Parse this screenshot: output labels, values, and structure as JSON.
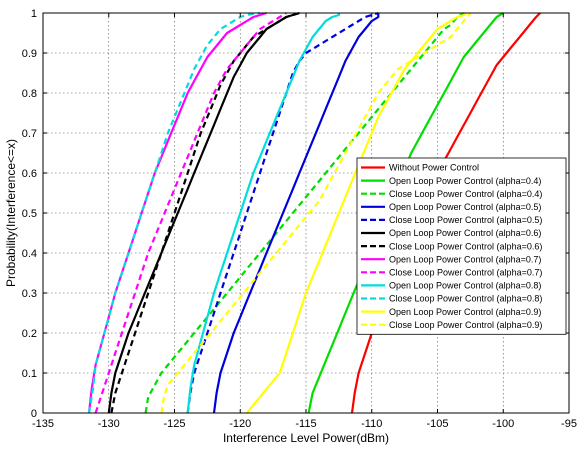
{
  "chart_data": {
    "type": "line",
    "title": "",
    "xlabel": "Interference Level Power(dBm)",
    "ylabel": "Probability(Interference<=x)",
    "xlim": [
      -135,
      -95
    ],
    "ylim": [
      0,
      1
    ],
    "xticks": [
      "-135",
      "-130",
      "-125",
      "-120",
      "-115",
      "-110",
      "-105",
      "-100",
      "-95"
    ],
    "yticks": [
      "0",
      "0.1",
      "0.2",
      "0.3",
      "0.4",
      "0.5",
      "0.6",
      "0.7",
      "0.8",
      "0.9",
      "1"
    ],
    "grid": true,
    "legend_position": "right",
    "series": [
      {
        "name": "Without Power Control",
        "color": "#ff0000",
        "dash": "solid",
        "x": [
          -111.5,
          -111.3,
          -111,
          -110.5,
          -110,
          -109.5,
          -109,
          -108.5,
          -108,
          -107.5,
          -107,
          -106.5,
          -106,
          -105.5,
          -105,
          -104.5,
          -104,
          -103.5,
          -103,
          -102.5,
          -102,
          -101.5,
          -101,
          -100.5,
          -100,
          -99.5,
          -99,
          -98.5,
          -98,
          -97.5,
          -97.2
        ],
        "y": [
          0,
          0.05,
          0.1,
          0.15,
          0.2,
          0.24,
          0.28,
          0.32,
          0.36,
          0.4,
          0.44,
          0.48,
          0.52,
          0.56,
          0.6,
          0.63,
          0.66,
          0.69,
          0.72,
          0.75,
          0.78,
          0.81,
          0.84,
          0.87,
          0.89,
          0.91,
          0.93,
          0.95,
          0.97,
          0.99,
          1
        ]
      },
      {
        "name": "Open Loop Power Control (alpha=0.4)",
        "color": "#00dd00",
        "dash": "solid",
        "x": [
          -114.8,
          -114.5,
          -114,
          -113.5,
          -113,
          -112.5,
          -112,
          -111.5,
          -111,
          -110.5,
          -110,
          -109.5,
          -109,
          -108.5,
          -108,
          -107.5,
          -107,
          -106.5,
          -106,
          -105.5,
          -105,
          -104.5,
          -104,
          -103.5,
          -103,
          -102.5,
          -102,
          -101.5,
          -101,
          -100.5,
          -100
        ],
        "y": [
          0,
          0.05,
          0.09,
          0.13,
          0.17,
          0.21,
          0.25,
          0.29,
          0.33,
          0.37,
          0.41,
          0.45,
          0.49,
          0.53,
          0.57,
          0.61,
          0.65,
          0.68,
          0.71,
          0.74,
          0.77,
          0.8,
          0.83,
          0.86,
          0.89,
          0.91,
          0.93,
          0.95,
          0.97,
          0.99,
          1
        ]
      },
      {
        "name": "Close Loop Power Control (alpha=0.4)",
        "color": "#00dd00",
        "dash": "dashed",
        "x": [
          -127.2,
          -127,
          -126.5,
          -126,
          -125.5,
          -125,
          -124.5,
          -124,
          -123.5,
          -123,
          -122.5,
          -122,
          -121.5,
          -121,
          -120.5,
          -120,
          -119.5,
          -119,
          -118.5,
          -118,
          -117.5,
          -117,
          -116.5,
          -116,
          -115.5,
          -115,
          -114.5,
          -114,
          -113.5,
          -113,
          -112.5,
          -112,
          -111.5,
          -111,
          -110.5,
          -110,
          -109.5,
          -109,
          -108.5,
          -108,
          -107.5,
          -107,
          -106.5,
          -106,
          -105.5,
          -105,
          -104.5,
          -104,
          -103.5,
          -103
        ],
        "y": [
          0,
          0.04,
          0.07,
          0.1,
          0.12,
          0.14,
          0.16,
          0.18,
          0.2,
          0.22,
          0.24,
          0.26,
          0.28,
          0.3,
          0.32,
          0.34,
          0.36,
          0.38,
          0.4,
          0.42,
          0.44,
          0.46,
          0.48,
          0.5,
          0.52,
          0.54,
          0.56,
          0.58,
          0.6,
          0.62,
          0.64,
          0.66,
          0.68,
          0.7,
          0.72,
          0.74,
          0.76,
          0.78,
          0.8,
          0.82,
          0.84,
          0.86,
          0.88,
          0.9,
          0.92,
          0.94,
          0.96,
          0.97,
          0.99,
          1
        ]
      },
      {
        "name": "Open Loop Power Control (alpha=0.5)",
        "color": "#0000dd",
        "dash": "solid",
        "x": [
          -122,
          -121.8,
          -121.5,
          -121,
          -120.5,
          -120,
          -119.5,
          -119,
          -118.5,
          -118,
          -117.5,
          -117,
          -116.5,
          -116,
          -115.5,
          -115,
          -114.5,
          -114,
          -113.5,
          -113,
          -112.5,
          -112,
          -111.5,
          -111,
          -110.5,
          -110,
          -109.5,
          -109.5
        ],
        "y": [
          0,
          0.05,
          0.1,
          0.15,
          0.2,
          0.24,
          0.28,
          0.32,
          0.36,
          0.4,
          0.44,
          0.48,
          0.52,
          0.56,
          0.6,
          0.64,
          0.68,
          0.72,
          0.76,
          0.8,
          0.84,
          0.88,
          0.91,
          0.94,
          0.96,
          0.98,
          0.99,
          1
        ]
      },
      {
        "name": "Close Loop Power Control (alpha=0.5)",
        "color": "#0000dd",
        "dash": "dashed",
        "x": [
          -124,
          -123.8,
          -123.5,
          -123,
          -122.5,
          -122,
          -121.5,
          -121,
          -120.5,
          -120,
          -119.5,
          -119,
          -118.5,
          -118,
          -117.5,
          -117,
          -116.5,
          -116,
          -115.5,
          -115,
          -114.5,
          -114,
          -113.5,
          -113,
          -112.5,
          -112,
          -111.5,
          -111,
          -110.5,
          -110,
          -109.5
        ],
        "y": [
          0,
          0.05,
          0.1,
          0.15,
          0.2,
          0.25,
          0.3,
          0.35,
          0.4,
          0.45,
          0.5,
          0.55,
          0.6,
          0.65,
          0.7,
          0.75,
          0.8,
          0.85,
          0.88,
          0.9,
          0.91,
          0.92,
          0.93,
          0.94,
          0.95,
          0.96,
          0.97,
          0.98,
          0.99,
          0.995,
          1
        ]
      },
      {
        "name": "Open Loop Power Control (alpha=0.6)",
        "color": "#000000",
        "dash": "solid",
        "x": [
          -130,
          -129.8,
          -129.5,
          -129,
          -128.5,
          -128,
          -127.5,
          -127,
          -126.5,
          -126,
          -125.5,
          -125,
          -124.5,
          -124,
          -123.5,
          -123,
          -122.5,
          -122,
          -121.5,
          -121,
          -120.5,
          -120,
          -119.5,
          -119,
          -118.5,
          -118,
          -117.5,
          -117,
          -116.5,
          -116,
          -115.5
        ],
        "y": [
          0,
          0.05,
          0.1,
          0.15,
          0.2,
          0.24,
          0.28,
          0.32,
          0.36,
          0.4,
          0.44,
          0.48,
          0.52,
          0.56,
          0.6,
          0.64,
          0.68,
          0.72,
          0.76,
          0.8,
          0.84,
          0.87,
          0.9,
          0.92,
          0.94,
          0.96,
          0.97,
          0.98,
          0.99,
          0.995,
          1
        ]
      },
      {
        "name": "Close Loop Power Control (alpha=0.6)",
        "color": "#000000",
        "dash": "dashed",
        "x": [
          -129.8,
          -129.5,
          -129,
          -128.5,
          -128,
          -127.5,
          -127,
          -126.5,
          -126,
          -125.5,
          -125,
          -124.5,
          -124,
          -123.5,
          -123,
          -122.5,
          -122,
          -121.5,
          -121,
          -120.5,
          -120,
          -119.5,
          -119,
          -118.5,
          -118,
          -117.5,
          -117,
          -116.5,
          -116,
          -115.5
        ],
        "y": [
          0,
          0.05,
          0.1,
          0.15,
          0.2,
          0.25,
          0.3,
          0.35,
          0.4,
          0.45,
          0.5,
          0.55,
          0.6,
          0.65,
          0.7,
          0.74,
          0.78,
          0.82,
          0.85,
          0.88,
          0.9,
          0.92,
          0.94,
          0.95,
          0.96,
          0.97,
          0.98,
          0.99,
          0.995,
          1
        ]
      },
      {
        "name": "Open Loop Power Control (alpha=0.7)",
        "color": "#ff00ff",
        "dash": "solid",
        "x": [
          -131.5,
          -131.3,
          -131,
          -130.5,
          -130,
          -129.5,
          -129,
          -128.5,
          -128,
          -127.5,
          -127,
          -126.5,
          -126,
          -125.5,
          -125,
          -124.5,
          -124,
          -123.5,
          -123,
          -122.5,
          -122,
          -121.5,
          -121,
          -120.5,
          -120,
          -119.5,
          -119,
          -118.5,
          -118
        ],
        "y": [
          0,
          0.06,
          0.12,
          0.18,
          0.24,
          0.3,
          0.35,
          0.4,
          0.45,
          0.5,
          0.55,
          0.6,
          0.64,
          0.68,
          0.72,
          0.76,
          0.8,
          0.83,
          0.86,
          0.89,
          0.91,
          0.93,
          0.95,
          0.96,
          0.97,
          0.98,
          0.99,
          0.995,
          1
        ]
      },
      {
        "name": "Close Loop Power Control (alpha=0.7)",
        "color": "#ff00ff",
        "dash": "dashed",
        "x": [
          -131,
          -130.5,
          -130,
          -129.5,
          -129,
          -128.5,
          -128,
          -127.5,
          -127,
          -126.5,
          -126,
          -125.5,
          -125,
          -124.5,
          -124,
          -123.5,
          -123,
          -122.5,
          -122,
          -121.5,
          -121,
          -120.5,
          -120,
          -119.5,
          -119,
          -118.5,
          -118,
          -117.5,
          -117,
          -116.5
        ],
        "y": [
          0,
          0.05,
          0.1,
          0.15,
          0.2,
          0.25,
          0.3,
          0.35,
          0.4,
          0.44,
          0.48,
          0.52,
          0.56,
          0.6,
          0.64,
          0.68,
          0.72,
          0.76,
          0.8,
          0.83,
          0.86,
          0.88,
          0.9,
          0.92,
          0.94,
          0.96,
          0.97,
          0.98,
          0.99,
          1
        ]
      },
      {
        "name": "Open Loop Power Control (alpha=0.8)",
        "color": "#00dddd",
        "dash": "solid",
        "x": [
          -124,
          -123.8,
          -123.5,
          -123,
          -122.5,
          -122,
          -121.5,
          -121,
          -120.5,
          -120,
          -119.5,
          -119,
          -118.5,
          -118,
          -117.5,
          -117,
          -116.5,
          -116,
          -115.5,
          -115,
          -114.5,
          -114,
          -113.5,
          -113,
          -112.5,
          -112.5
        ],
        "y": [
          0,
          0.06,
          0.12,
          0.18,
          0.24,
          0.3,
          0.35,
          0.4,
          0.45,
          0.5,
          0.55,
          0.6,
          0.64,
          0.68,
          0.72,
          0.76,
          0.8,
          0.84,
          0.88,
          0.91,
          0.94,
          0.96,
          0.98,
          0.99,
          0.995,
          1
        ]
      },
      {
        "name": "Close Loop Power Control (alpha=0.8)",
        "color": "#00dddd",
        "dash": "dashed",
        "x": [
          -131.5,
          -131.2,
          -131,
          -130.5,
          -130,
          -129.5,
          -129,
          -128.5,
          -128,
          -127.5,
          -127,
          -126.5,
          -126,
          -125.5,
          -125,
          -124.5,
          -124,
          -123.5,
          -123,
          -122.5,
          -122,
          -121.5,
          -121,
          -120.5,
          -120,
          -119.5,
          -119,
          -118.5
        ],
        "y": [
          0,
          0.06,
          0.12,
          0.18,
          0.24,
          0.3,
          0.35,
          0.4,
          0.45,
          0.5,
          0.55,
          0.6,
          0.65,
          0.7,
          0.74,
          0.78,
          0.82,
          0.86,
          0.89,
          0.92,
          0.94,
          0.96,
          0.97,
          0.98,
          0.99,
          0.995,
          0.998,
          1
        ]
      },
      {
        "name": "Open Loop Power Control (alpha=0.9)",
        "color": "#ffff00",
        "dash": "solid",
        "x": [
          -119.5,
          -119,
          -118.5,
          -118,
          -117.5,
          -117,
          -116.5,
          -116,
          -115.5,
          -115,
          -114.5,
          -114,
          -113.5,
          -113,
          -112.5,
          -112,
          -111.5,
          -111,
          -110.5,
          -110,
          -109.5,
          -109,
          -108.5,
          -108,
          -107.5,
          -107,
          -106.5,
          -106,
          -105.5,
          -105,
          -104.5,
          -104,
          -103.5,
          -103,
          -102.8
        ],
        "y": [
          0,
          0.02,
          0.04,
          0.06,
          0.08,
          0.1,
          0.15,
          0.2,
          0.25,
          0.3,
          0.34,
          0.38,
          0.42,
          0.46,
          0.5,
          0.54,
          0.58,
          0.62,
          0.66,
          0.7,
          0.74,
          0.77,
          0.8,
          0.83,
          0.86,
          0.88,
          0.9,
          0.92,
          0.94,
          0.96,
          0.97,
          0.98,
          0.99,
          0.995,
          1
        ]
      },
      {
        "name": "Close Loop Power Control (alpha=0.9)",
        "color": "#ffff00",
        "dash": "dashed",
        "x": [
          -126,
          -125.8,
          -125.5,
          -125,
          -124.5,
          -124,
          -123.5,
          -123,
          -122.5,
          -122,
          -121.5,
          -121,
          -120.5,
          -120,
          -119.5,
          -119,
          -118.5,
          -118,
          -117.5,
          -117,
          -116.5,
          -116,
          -115.5,
          -115,
          -114.5,
          -114,
          -113.5,
          -113,
          -112.5,
          -112,
          -111.5,
          -111,
          -110.5,
          -110,
          -109.5,
          -109,
          -108.5,
          -108,
          -107.5,
          -107,
          -106.5,
          -106,
          -105.5,
          -105,
          -104.5,
          -104,
          -103.5,
          -103,
          -102.5
        ],
        "y": [
          0,
          0.04,
          0.07,
          0.09,
          0.11,
          0.13,
          0.15,
          0.17,
          0.19,
          0.21,
          0.23,
          0.25,
          0.27,
          0.29,
          0.31,
          0.33,
          0.35,
          0.37,
          0.39,
          0.41,
          0.43,
          0.45,
          0.47,
          0.49,
          0.51,
          0.53,
          0.56,
          0.59,
          0.62,
          0.65,
          0.68,
          0.71,
          0.74,
          0.77,
          0.8,
          0.82,
          0.84,
          0.86,
          0.87,
          0.88,
          0.89,
          0.9,
          0.91,
          0.92,
          0.93,
          0.94,
          0.96,
          0.98,
          1
        ]
      }
    ]
  }
}
